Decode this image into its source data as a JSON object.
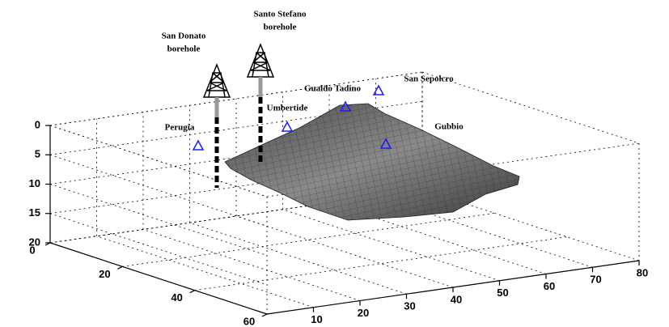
{
  "chart_data": {
    "type": "surface3d",
    "xlim": [
      0,
      60
    ],
    "xticks": [
      0,
      20,
      40,
      60
    ],
    "ylim": [
      0,
      80
    ],
    "yticks": [
      10,
      20,
      30,
      40,
      50,
      60,
      70,
      80
    ],
    "zlim": [
      0,
      20
    ],
    "zticks": [
      0,
      5,
      10,
      15,
      20
    ],
    "grid": true,
    "places": [
      "Perugia",
      "Umbertide",
      "Gualdo Tadino",
      "San Sepolcro",
      "Gubbio"
    ],
    "boreholes": [
      [
        "San Donato",
        "borehole"
      ],
      [
        "Santo Stefano",
        "borehole"
      ]
    ],
    "marker_color": "#1a1aff"
  }
}
